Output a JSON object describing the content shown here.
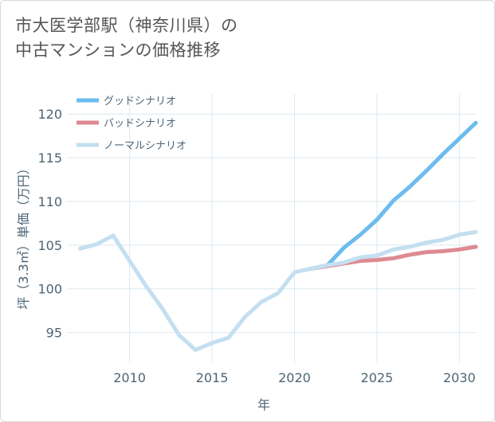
{
  "header": {
    "title_line1": "市大医学部駅（神奈川県）の",
    "title_line2": "中古マンションの価格推移"
  },
  "chart_data": {
    "type": "line",
    "title": "市大医学部駅（神奈川県）の中古マンションの価格推移",
    "xlabel": "年",
    "ylabel": "坪（3.3㎡）単価（万円）",
    "xlim": [
      2006.2,
      2031
    ],
    "ylim": [
      91.5,
      122.3
    ],
    "xticks": [
      2010,
      2015,
      2020,
      2025,
      2030
    ],
    "yticks": [
      95,
      100,
      105,
      110,
      115,
      120
    ],
    "grid": true,
    "legend_position": "top-left",
    "series": [
      {
        "name": "グッドシナリオ",
        "color": "#6cbcee",
        "x": [
          2021,
          2022,
          2023,
          2024,
          2025,
          2026,
          2027,
          2028,
          2029,
          2030,
          2031
        ],
        "y": [
          102.3,
          102.7,
          104.7,
          106.2,
          107.9,
          110.1,
          111.7,
          113.5,
          115.4,
          117.2,
          119.0
        ]
      },
      {
        "name": "バッドシナリオ",
        "color": "#de8a92",
        "x": [
          2021,
          2022,
          2023,
          2024,
          2025,
          2026,
          2027,
          2028,
          2029,
          2030,
          2031
        ],
        "y": [
          102.3,
          102.6,
          102.9,
          103.2,
          103.3,
          103.5,
          103.9,
          104.2,
          104.3,
          104.5,
          104.8
        ]
      },
      {
        "name": "ノーマルシナリオ",
        "color": "#c3dff0",
        "x": [
          2007,
          2008,
          2009,
          2010,
          2011,
          2012,
          2013,
          2014,
          2015,
          2016,
          2017,
          2018,
          2019,
          2020,
          2021,
          2022,
          2023,
          2024,
          2025,
          2026,
          2027,
          2028,
          2029,
          2030,
          2031
        ],
        "y": [
          104.6,
          105.1,
          106.1,
          103.2,
          100.3,
          97.7,
          94.7,
          93.0,
          93.8,
          94.4,
          96.8,
          98.5,
          99.5,
          101.9,
          102.3,
          102.7,
          103.0,
          103.6,
          103.8,
          104.5,
          104.8,
          105.3,
          105.6,
          106.2,
          106.5
        ]
      }
    ]
  }
}
